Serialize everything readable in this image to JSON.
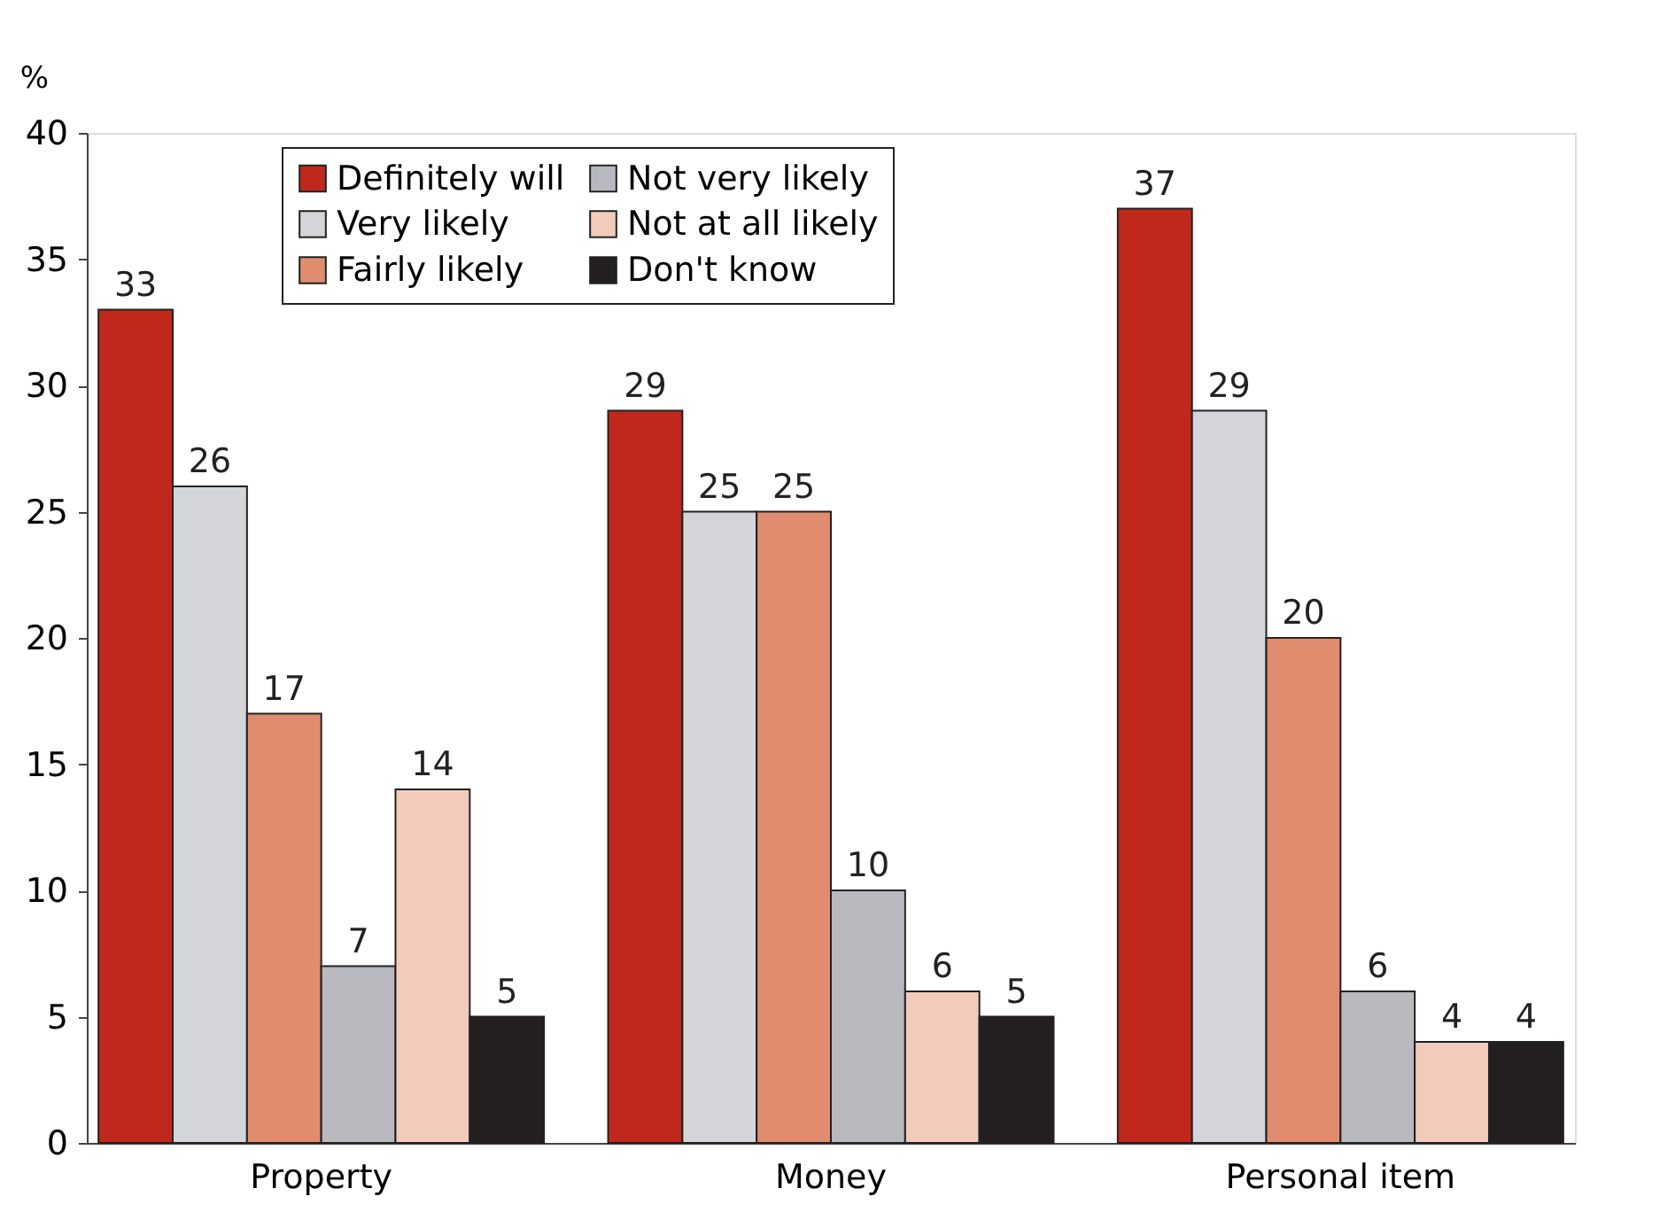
{
  "chart_data": {
    "type": "bar",
    "ylabel": "%",
    "categories": [
      "Property",
      "Money",
      "Personal item"
    ],
    "series": [
      {
        "name": "Definitely will",
        "color": "#c0281c",
        "values": [
          33,
          29,
          37
        ]
      },
      {
        "name": "Very likely",
        "color": "#d4d5d8",
        "values": [
          26,
          25,
          29
        ]
      },
      {
        "name": "Fairly likely",
        "color": "#e08c6e",
        "values": [
          17,
          25,
          20
        ]
      },
      {
        "name": "Not very likely",
        "color": "#b8b9be",
        "values": [
          7,
          10,
          6
        ]
      },
      {
        "name": "Not at all likely",
        "color": "#f2cbbb",
        "values": [
          14,
          6,
          4
        ]
      },
      {
        "name": "Don't know",
        "color": "#231f20",
        "values": [
          5,
          5,
          4
        ]
      }
    ],
    "ylim": [
      0,
      40
    ],
    "yticks": [
      0,
      5,
      10,
      15,
      20,
      25,
      30,
      35,
      40
    ],
    "data_labels": true,
    "grid": false,
    "legend": "top"
  }
}
